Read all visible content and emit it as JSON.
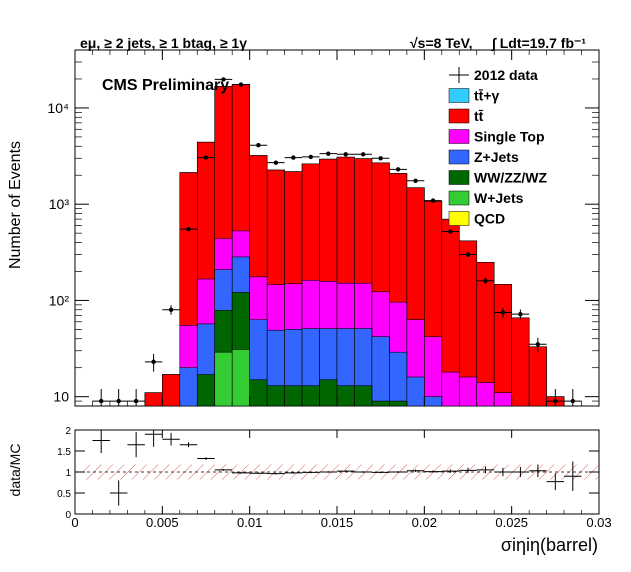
{
  "header": {
    "selection": "eμ, ≥ 2 jets, ≥ 1 btag, ≥ 1γ",
    "energy": "√s=8 TeV,",
    "lumi": "∫ Ldt=19.7 fb⁻¹"
  },
  "chart_data": [
    {
      "type": "area",
      "title": "CMS Preliminary",
      "xlabel": "σiηiη(barrel)",
      "ylabel": "Number of Events",
      "y_scale": "log",
      "xlim": [
        0,
        0.03
      ],
      "ylim": [
        8,
        40000
      ],
      "x_bins": [
        0.0005,
        0.0015,
        0.0025,
        0.0035,
        0.0045,
        0.0055,
        0.0065,
        0.0075,
        0.0085,
        0.0095,
        0.0105,
        0.0115,
        0.0125,
        0.0135,
        0.0145,
        0.0155,
        0.0165,
        0.0175,
        0.0185,
        0.0195,
        0.0205,
        0.0215,
        0.0225,
        0.0235,
        0.0245,
        0.0255,
        0.0265,
        0.0275,
        0.0285
      ],
      "x_ticks": [
        "0",
        "0.005",
        "0.01",
        "0.015",
        "0.02",
        "0.025",
        "0.03"
      ],
      "y_ticks": [
        "10",
        "10²",
        "10³",
        "10⁴"
      ],
      "legend_position": "top-right",
      "stack_order_bottom_to_top": [
        "QCD",
        "W+Jets",
        "WW/ZZ/WZ",
        "Z+Jets",
        "Single Top",
        "tt̄",
        "tt̄+γ"
      ],
      "series": [
        {
          "name": "QCD",
          "color": "#ffff00",
          "values": [
            0,
            0,
            0,
            0,
            0,
            0,
            0,
            0,
            0,
            0,
            0,
            0,
            0,
            0,
            0,
            0,
            0,
            0,
            0,
            0,
            0,
            0,
            0,
            0,
            0,
            0,
            0,
            0,
            0
          ]
        },
        {
          "name": "W+Jets",
          "color": "#33cc33",
          "values": [
            0,
            0,
            0,
            0,
            0,
            0,
            0,
            5,
            29,
            31,
            0,
            0,
            0,
            0,
            0,
            0,
            0,
            0,
            0,
            0,
            0,
            0,
            0,
            0,
            0,
            0,
            0,
            0,
            0
          ]
        },
        {
          "name": "WW/ZZ/WZ",
          "color": "#006600",
          "values": [
            0,
            0,
            0,
            0,
            0,
            0,
            7,
            12,
            50,
            90,
            15,
            13,
            13,
            13,
            15,
            13,
            13,
            9,
            9,
            0,
            0,
            0,
            0,
            0,
            0,
            0,
            0,
            0,
            0
          ]
        },
        {
          "name": "Z+Jets",
          "color": "#3366ff",
          "values": [
            0,
            0,
            0,
            0,
            0,
            0,
            13,
            40,
            130,
            162,
            48,
            36,
            37,
            38,
            36,
            38,
            38,
            33,
            20,
            16,
            10,
            0,
            0,
            0,
            0,
            0,
            0,
            0,
            0
          ]
        },
        {
          "name": "Single Top",
          "color": "#ff00ff",
          "values": [
            0,
            0,
            0,
            0,
            0,
            0,
            35,
            110,
            230,
            245,
            113,
            97,
            99,
            111,
            107,
            100,
            100,
            81,
            67,
            47,
            32,
            18,
            16,
            14,
            11,
            0,
            0,
            0,
            0
          ]
        },
        {
          "name": "tt̄",
          "color": "#ff0000",
          "values": [
            0,
            0,
            0,
            0,
            11,
            17,
            2075,
            4240,
            16280,
            17050,
            3030,
            2120,
            2030,
            2460,
            2780,
            2930,
            2820,
            2565,
            1990,
            1420,
            1030,
            680,
            400,
            235,
            136,
            66,
            33,
            10,
            0
          ],
          "note": "increments above Single Top"
        },
        {
          "name": "tt̄+γ",
          "color": "#33ccff",
          "values": [
            0,
            0,
            0,
            0,
            0,
            0,
            0,
            0,
            0,
            0,
            0,
            0,
            0,
            0,
            0,
            0,
            0,
            0,
            0,
            0,
            0,
            0,
            0,
            0,
            0,
            0,
            0,
            0,
            0
          ]
        }
      ],
      "data_series": {
        "name": "2012 data",
        "values": [
          7,
          9,
          9,
          9,
          23,
          80,
          550,
          3050,
          19800,
          17500,
          4100,
          2700,
          3050,
          3100,
          3350,
          3300,
          3300,
          3000,
          2300,
          1750,
          1090,
          520,
          300,
          160,
          75,
          72,
          35,
          9,
          9
        ]
      }
    },
    {
      "type": "scatter",
      "title": "",
      "xlabel": "",
      "ylabel": "data/MC",
      "xlim": [
        0,
        0.03
      ],
      "ylim": [
        0,
        2
      ],
      "x_ticks": [
        "0",
        "0.005",
        "0.01",
        "0.015",
        "0.02",
        "0.025",
        "0.03"
      ],
      "y_ticks": [
        "0",
        "0.5",
        "1",
        "1.5",
        "2"
      ],
      "x": [
        0.0015,
        0.0025,
        0.0035,
        0.0045,
        0.0055,
        0.0065,
        0.0075,
        0.0085,
        0.0095,
        0.0105,
        0.0115,
        0.0125,
        0.0135,
        0.0145,
        0.0155,
        0.0165,
        0.0175,
        0.0185,
        0.0195,
        0.0205,
        0.0215,
        0.0225,
        0.0235,
        0.0245,
        0.0255,
        0.0265,
        0.0275,
        0.0285
      ],
      "values": [
        1.75,
        0.5,
        1.65,
        1.9,
        1.78,
        1.65,
        1.32,
        1.05,
        0.98,
        0.97,
        0.96,
        0.98,
        0.99,
        1.0,
        1.02,
        1.0,
        0.99,
        1.0,
        1.03,
        1.01,
        1.02,
        1.04,
        1.05,
        1.0,
        1.0,
        1.03,
        0.77,
        0.9
      ],
      "errors": [
        0.3,
        0.3,
        0.3,
        0.3,
        0.15,
        0.06,
        0.03,
        0.02,
        0.02,
        0.02,
        0.02,
        0.02,
        0.02,
        0.02,
        0.02,
        0.02,
        0.02,
        0.02,
        0.03,
        0.03,
        0.04,
        0.06,
        0.08,
        0.1,
        0.12,
        0.15,
        0.2,
        0.35
      ],
      "band": {
        "lower": 0.82,
        "upper": 1.18
      }
    }
  ]
}
